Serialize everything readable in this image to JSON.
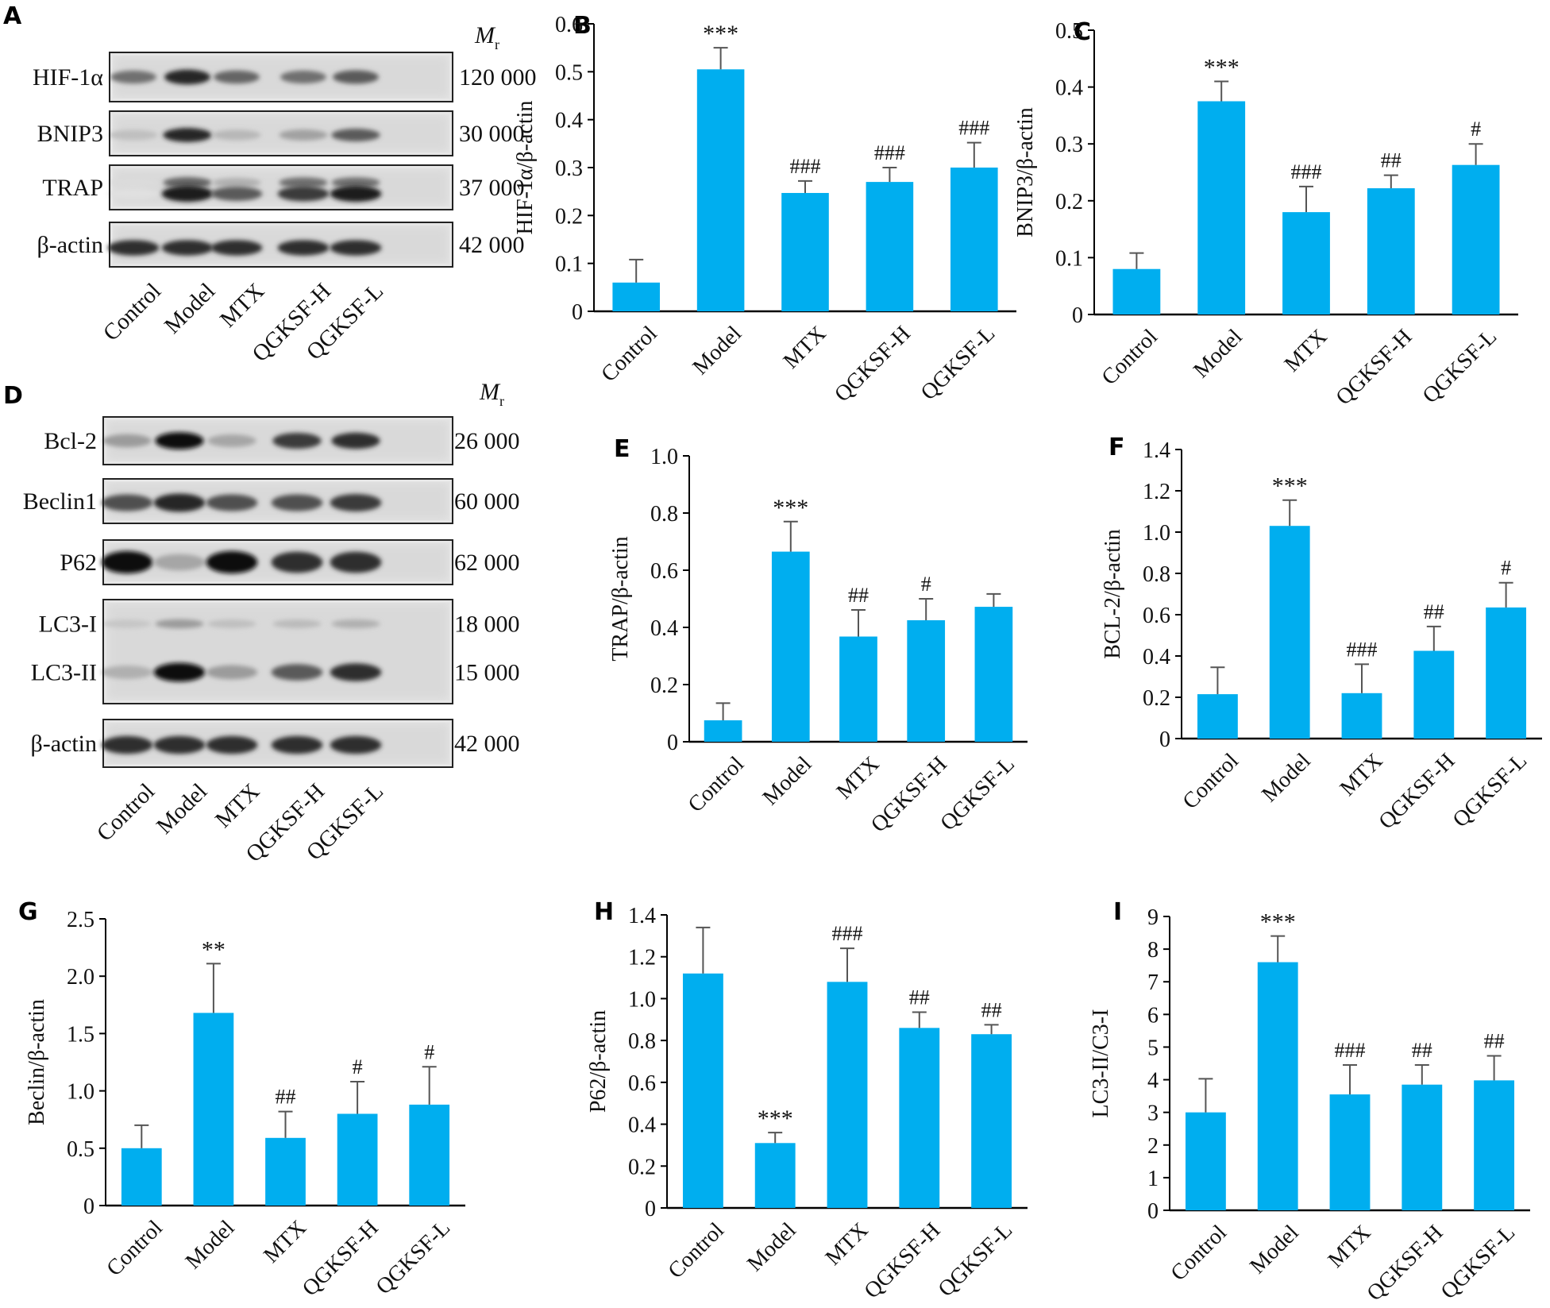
{
  "groups": [
    "Control",
    "Model",
    "MTX",
    "QGKSF-H",
    "QGKSF-L"
  ],
  "colors": {
    "bar": "#00AEEF",
    "error": "#555555",
    "axis": "#000000",
    "text": "#111111"
  },
  "mr_label": {
    "main": "M",
    "sub": "r"
  },
  "blots": [
    {
      "panel": "A",
      "rows": [
        {
          "label": "HIF-1α",
          "mass": "120 000"
        },
        {
          "label": "BNIP3",
          "mass": "30 000"
        },
        {
          "label": "TRAP",
          "mass": "37 000"
        },
        {
          "label": "β-actin",
          "mass": "42 000"
        }
      ]
    },
    {
      "panel": "D",
      "rows": [
        {
          "label": "Bcl-2",
          "mass": "26 000"
        },
        {
          "label": "Beclin1",
          "mass": "60 000"
        },
        {
          "label": "P62",
          "mass": "62 000"
        },
        {
          "label": "LC3-I",
          "mass": "18 000"
        },
        {
          "label": "LC3-II",
          "mass": "15 000"
        },
        {
          "label": "β-actin",
          "mass": "42 000"
        }
      ]
    }
  ],
  "chart_data": [
    {
      "panel": "B",
      "type": "bar",
      "ylabel": "HIF-1α/β-actin",
      "ylim": [
        0,
        0.6
      ],
      "ticks": [
        0,
        0.1,
        0.2,
        0.3,
        0.4,
        0.5,
        0.6
      ],
      "tick_labels": [
        "0",
        "0.1",
        "0.2",
        "0.3",
        "0.4",
        "0.5",
        "0.6"
      ],
      "categories": [
        "Control",
        "Model",
        "MTX",
        "QGKSF-H",
        "QGKSF-L"
      ],
      "values": [
        0.06,
        0.505,
        0.247,
        0.27,
        0.3
      ],
      "errors": [
        0.048,
        0.045,
        0.025,
        0.03,
        0.052
      ],
      "annotations": [
        "",
        "***",
        "###",
        "###",
        "###"
      ]
    },
    {
      "panel": "C",
      "type": "bar",
      "ylabel": "BNIP3/β-actin",
      "ylim": [
        0,
        0.5
      ],
      "ticks": [
        0,
        0.1,
        0.2,
        0.3,
        0.4,
        0.5
      ],
      "tick_labels": [
        "0",
        "0.1",
        "0.2",
        "0.3",
        "0.4",
        "0.5"
      ],
      "categories": [
        "Control",
        "Model",
        "MTX",
        "QGKSF-H",
        "QGKSF-L"
      ],
      "values": [
        0.08,
        0.375,
        0.18,
        0.222,
        0.263
      ],
      "errors": [
        0.028,
        0.035,
        0.045,
        0.023,
        0.037
      ],
      "annotations": [
        "",
        "***",
        "###",
        "##",
        "#"
      ]
    },
    {
      "panel": "E",
      "type": "bar",
      "ylabel": "TRAP/β-actin",
      "ylim": [
        0,
        1.0
      ],
      "ticks": [
        0,
        0.2,
        0.4,
        0.6,
        0.8,
        1.0
      ],
      "tick_labels": [
        "0",
        "0.2",
        "0.4",
        "0.6",
        "0.8",
        "1.0"
      ],
      "categories": [
        "Control",
        "Model",
        "MTX",
        "QGKSF-H",
        "QGKSF-L"
      ],
      "values": [
        0.075,
        0.665,
        0.368,
        0.425,
        0.472
      ],
      "errors": [
        0.06,
        0.105,
        0.093,
        0.075,
        0.045
      ],
      "annotations": [
        "",
        "***",
        "##",
        "#",
        ""
      ]
    },
    {
      "panel": "F",
      "type": "bar",
      "ylabel": "BCL-2/β-actin",
      "ylim": [
        0,
        1.4
      ],
      "ticks": [
        0,
        0.2,
        0.4,
        0.6,
        0.8,
        1.0,
        1.2,
        1.4
      ],
      "tick_labels": [
        "0",
        "0.2",
        "0.4",
        "0.6",
        "0.8",
        "1.0",
        "1.2",
        "1.4"
      ],
      "categories": [
        "Control",
        "Model",
        "MTX",
        "QGKSF-H",
        "QGKSF-L"
      ],
      "values": [
        0.215,
        1.03,
        0.22,
        0.425,
        0.635
      ],
      "errors": [
        0.13,
        0.125,
        0.14,
        0.118,
        0.12
      ],
      "annotations": [
        "",
        "***",
        "###",
        "##",
        "#"
      ]
    },
    {
      "panel": "G",
      "type": "bar",
      "ylabel": "Beclin/β-actin",
      "ylim": [
        0,
        2.5
      ],
      "ticks": [
        0,
        0.5,
        1.0,
        1.5,
        2.0,
        2.5
      ],
      "tick_labels": [
        "0",
        "0.5",
        "1.0",
        "1.5",
        "2.0",
        "2.5"
      ],
      "categories": [
        "Control",
        "Model",
        "MTX",
        "QGKSF-H",
        "QGKSF-L"
      ],
      "values": [
        0.5,
        1.68,
        0.59,
        0.8,
        0.88
      ],
      "errors": [
        0.2,
        0.43,
        0.23,
        0.28,
        0.33
      ],
      "annotations": [
        "",
        "**",
        "##",
        "#",
        "#"
      ]
    },
    {
      "panel": "H",
      "type": "bar",
      "ylabel": "P62/β-actin",
      "ylim": [
        0,
        1.4
      ],
      "ticks": [
        0,
        0.2,
        0.4,
        0.6,
        0.8,
        1.0,
        1.2,
        1.4
      ],
      "tick_labels": [
        "0",
        "0.2",
        "0.4",
        "0.6",
        "0.8",
        "1.0",
        "1.2",
        "1.4"
      ],
      "categories": [
        "Control",
        "Model",
        "MTX",
        "QGKSF-H",
        "QGKSF-L"
      ],
      "values": [
        1.12,
        0.31,
        1.08,
        0.86,
        0.83
      ],
      "errors": [
        0.22,
        0.05,
        0.16,
        0.075,
        0.045
      ],
      "annotations": [
        "",
        "***",
        "###",
        "##",
        "##"
      ]
    },
    {
      "panel": "I",
      "type": "bar",
      "ylabel": "LC3-II/C3-I",
      "ylim": [
        0,
        9
      ],
      "ticks": [
        0,
        1,
        2,
        3,
        4,
        5,
        6,
        7,
        8,
        9
      ],
      "tick_labels": [
        "0",
        "1",
        "2",
        "3",
        "4",
        "5",
        "6",
        "7",
        "8",
        "9"
      ],
      "categories": [
        "Control",
        "Model",
        "MTX",
        "QGKSF-H",
        "QGKSF-L"
      ],
      "values": [
        3.0,
        7.6,
        3.55,
        3.85,
        3.98
      ],
      "errors": [
        1.03,
        0.8,
        0.9,
        0.6,
        0.75
      ],
      "annotations": [
        "",
        "***",
        "###",
        "##",
        "##"
      ]
    }
  ]
}
